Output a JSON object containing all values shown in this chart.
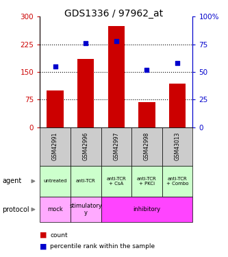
{
  "title": "GDS1336 / 97962_at",
  "samples": [
    "GSM42991",
    "GSM42996",
    "GSM42997",
    "GSM42998",
    "GSM43013"
  ],
  "counts": [
    100,
    185,
    275,
    68,
    118
  ],
  "percentile_ranks": [
    55,
    76,
    78,
    52,
    58
  ],
  "left_ylim": [
    0,
    300
  ],
  "right_ylim": [
    0,
    100
  ],
  "left_yticks": [
    0,
    75,
    150,
    225,
    300
  ],
  "right_yticks": [
    0,
    25,
    50,
    75,
    100
  ],
  "left_yticklabels": [
    "0",
    "75",
    "150",
    "225",
    "300"
  ],
  "right_yticklabels": [
    "0",
    "25",
    "50",
    "75",
    "100%"
  ],
  "bar_color": "#cc0000",
  "dot_color": "#0000cc",
  "agent_labels": [
    "untreated",
    "anti-TCR",
    "anti-TCR\n+ CsA",
    "anti-TCR\n+ PKCi",
    "anti-TCR\n+ Combo"
  ],
  "agent_bg": "#ccffcc",
  "sample_bg": "#cccccc",
  "protocol_mock_color": "#ffaaff",
  "protocol_stim_color": "#ffaaff",
  "protocol_inhib_color": "#ff44ff",
  "left_axis_color": "#cc0000",
  "right_axis_color": "#0000cc"
}
